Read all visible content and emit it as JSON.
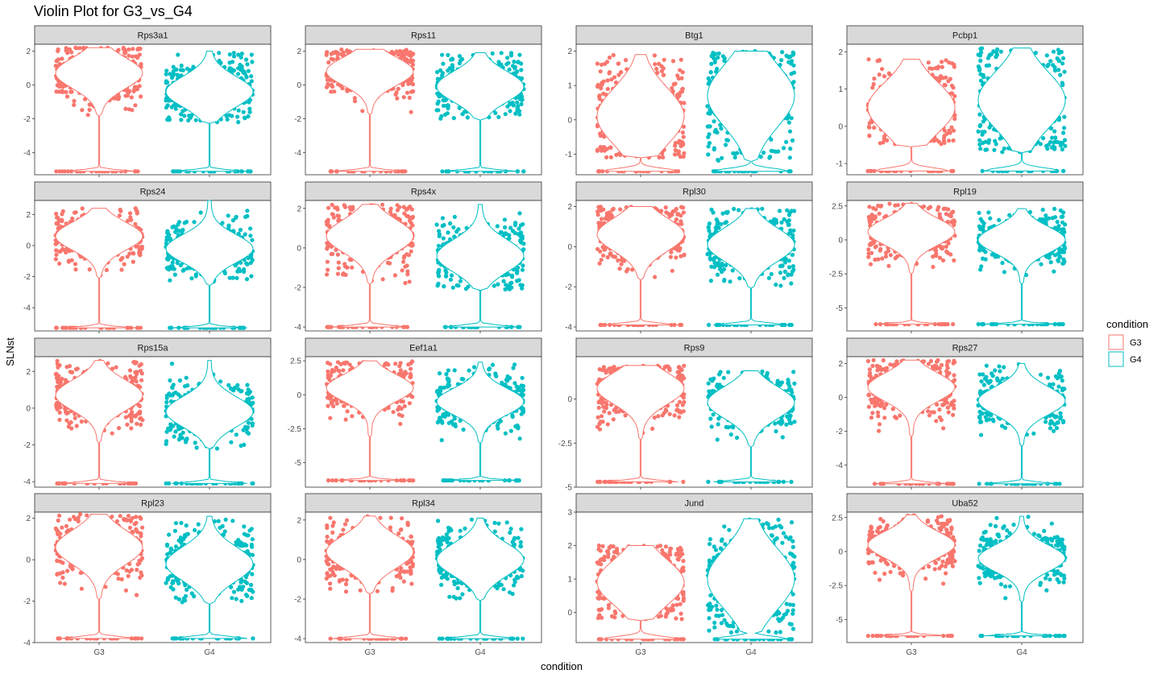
{
  "chart_data": {
    "type": "violin",
    "title": "Violin Plot for G3_vs_G4",
    "xlabel": "condition",
    "ylabel": "SLNst",
    "categories": [
      "G3",
      "G4"
    ],
    "legend": {
      "title": "condition",
      "position": "right",
      "entries": [
        {
          "name": "G3",
          "color": "#F8766D"
        },
        {
          "name": "G4",
          "color": "#00BFC4"
        }
      ]
    },
    "facets": [
      {
        "gene": "Rps3a1",
        "ylim": [
          -5.3,
          2.4
        ],
        "yticks": [
          2,
          0,
          -2,
          -4
        ],
        "G3": {
          "median": 0.7,
          "spread": 1.2,
          "max": 2.2,
          "floor": -5.1,
          "tail": -1.8
        },
        "G4": {
          "median": -0.4,
          "spread": 1.2,
          "max": 2.0,
          "floor": -5.1,
          "tail": -2.2
        }
      },
      {
        "gene": "Rps11",
        "ylim": [
          -5.3,
          2.4
        ],
        "yticks": [
          2,
          0,
          -2,
          -4
        ],
        "G3": {
          "median": 0.8,
          "spread": 1.1,
          "max": 2.1,
          "floor": -5.1,
          "tail": -1.7
        },
        "G4": {
          "median": -0.1,
          "spread": 1.2,
          "max": 1.9,
          "floor": -5.1,
          "tail": -2.0
        }
      },
      {
        "gene": "Btg1",
        "ylim": [
          -1.6,
          2.2
        ],
        "yticks": [
          2,
          1,
          0,
          -1
        ],
        "G3": {
          "median": 0.1,
          "spread": 1.1,
          "max": 1.9,
          "floor": -1.5,
          "tail": -1.1
        },
        "G4": {
          "median": 0.7,
          "spread": 1.2,
          "max": 2.0,
          "floor": -1.5,
          "tail": -1.2
        }
      },
      {
        "gene": "Pcbp1",
        "ylim": [
          -1.3,
          2.2
        ],
        "yticks": [
          2,
          1,
          0,
          -1
        ],
        "G3": {
          "median": 0.5,
          "spread": 0.9,
          "max": 1.8,
          "floor": -1.2,
          "tail": -0.5
        },
        "G4": {
          "median": 0.7,
          "spread": 1.0,
          "max": 2.1,
          "floor": -1.2,
          "tail": -0.7
        }
      },
      {
        "gene": "Rps24",
        "ylim": [
          -5.5,
          2.9
        ],
        "yticks": [
          2,
          0,
          -2,
          -4
        ],
        "G3": {
          "median": 0.6,
          "spread": 1.2,
          "max": 2.4,
          "floor": -5.3,
          "tail": -2.0
        },
        "G4": {
          "median": -0.2,
          "spread": 1.2,
          "max": 2.9,
          "floor": -5.3,
          "tail": -2.5
        }
      },
      {
        "gene": "Rps4x",
        "ylim": [
          -4.2,
          2.4
        ],
        "yticks": [
          2,
          0,
          -2,
          -4
        ],
        "G3": {
          "median": 0.6,
          "spread": 1.1,
          "max": 2.2,
          "floor": -4.0,
          "tail": -1.8
        },
        "G4": {
          "median": -0.4,
          "spread": 1.1,
          "max": 2.2,
          "floor": -4.0,
          "tail": -2.1
        }
      },
      {
        "gene": "Rpl30",
        "ylim": [
          -4.2,
          2.3
        ],
        "yticks": [
          2,
          0,
          -2,
          -4
        ],
        "G3": {
          "median": 0.6,
          "spread": 1.1,
          "max": 2.0,
          "floor": -3.9,
          "tail": -1.6
        },
        "G4": {
          "median": 0.1,
          "spread": 1.1,
          "max": 1.9,
          "floor": -3.9,
          "tail": -2.0
        }
      },
      {
        "gene": "Rpl19",
        "ylim": [
          -6.7,
          2.9
        ],
        "yticks": [
          2.5,
          0.0,
          -2.5,
          -5.0
        ],
        "G3": {
          "median": 0.6,
          "spread": 1.3,
          "max": 2.7,
          "floor": -6.2,
          "tail": -2.4
        },
        "G4": {
          "median": 0.0,
          "spread": 1.3,
          "max": 2.3,
          "floor": -6.2,
          "tail": -3.2
        }
      },
      {
        "gene": "Rps15a",
        "ylim": [
          -4.3,
          2.8
        ],
        "yticks": [
          2,
          0,
          -2,
          -4
        ],
        "G3": {
          "median": 0.7,
          "spread": 1.1,
          "max": 2.6,
          "floor": -4.1,
          "tail": -1.8
        },
        "G4": {
          "median": -0.2,
          "spread": 1.1,
          "max": 2.6,
          "floor": -4.1,
          "tail": -2.2
        }
      },
      {
        "gene": "Eef1a1",
        "ylim": [
          -6.8,
          2.8
        ],
        "yticks": [
          2.5,
          0.0,
          -2.5,
          -5.0
        ],
        "G3": {
          "median": 0.5,
          "spread": 1.3,
          "max": 2.5,
          "floor": -6.3,
          "tail": -3.0
        },
        "G4": {
          "median": -0.5,
          "spread": 1.3,
          "max": 2.4,
          "floor": -6.3,
          "tail": -3.4
        }
      },
      {
        "gene": "Rps9",
        "ylim": [
          -5.0,
          2.4
        ],
        "yticks": [
          0.0,
          -2.5,
          -5.0
        ],
        "G3": {
          "median": 0.6,
          "spread": 1.2,
          "max": 1.9,
          "floor": -4.7,
          "tail": -2.2
        },
        "G4": {
          "median": -0.2,
          "spread": 1.2,
          "max": 1.6,
          "floor": -4.7,
          "tail": -2.6
        }
      },
      {
        "gene": "Rps27",
        "ylim": [
          -5.3,
          2.4
        ],
        "yticks": [
          2,
          0,
          -2,
          -4
        ],
        "G3": {
          "median": 0.6,
          "spread": 1.1,
          "max": 2.2,
          "floor": -5.1,
          "tail": -2.2
        },
        "G4": {
          "median": -0.2,
          "spread": 1.1,
          "max": 2.0,
          "floor": -5.1,
          "tail": -2.8
        }
      },
      {
        "gene": "Rpl23",
        "ylim": [
          -4.0,
          2.3
        ],
        "yticks": [
          2,
          0,
          -2,
          -4
        ],
        "G3": {
          "median": 0.6,
          "spread": 1.1,
          "max": 2.2,
          "floor": -3.8,
          "tail": -1.8
        },
        "G4": {
          "median": -0.2,
          "spread": 1.1,
          "max": 2.1,
          "floor": -3.8,
          "tail": -2.1
        }
      },
      {
        "gene": "Rpl34",
        "ylim": [
          -4.2,
          2.4
        ],
        "yticks": [
          2,
          0,
          -2,
          -4
        ],
        "G3": {
          "median": 0.4,
          "spread": 1.1,
          "max": 2.2,
          "floor": -4.0,
          "tail": -1.7
        },
        "G4": {
          "median": 0.0,
          "spread": 1.1,
          "max": 2.1,
          "floor": -4.0,
          "tail": -2.0
        }
      },
      {
        "gene": "Jund",
        "ylim": [
          -0.9,
          3.0
        ],
        "yticks": [
          3,
          2,
          1,
          0
        ],
        "G3": {
          "median": 0.9,
          "spread": 0.9,
          "max": 2.0,
          "floor": -0.8,
          "tail": -0.2
        },
        "G4": {
          "median": 1.0,
          "spread": 1.2,
          "max": 2.8,
          "floor": -0.8,
          "tail": -0.6
        }
      },
      {
        "gene": "Uba52",
        "ylim": [
          -6.7,
          2.9
        ],
        "yticks": [
          2.5,
          0.0,
          -2.5,
          -5.0
        ],
        "G3": {
          "median": 0.5,
          "spread": 1.3,
          "max": 2.7,
          "floor": -6.2,
          "tail": -2.8
        },
        "G4": {
          "median": -0.5,
          "spread": 1.3,
          "max": 2.6,
          "floor": -6.2,
          "tail": -3.6
        }
      }
    ]
  }
}
